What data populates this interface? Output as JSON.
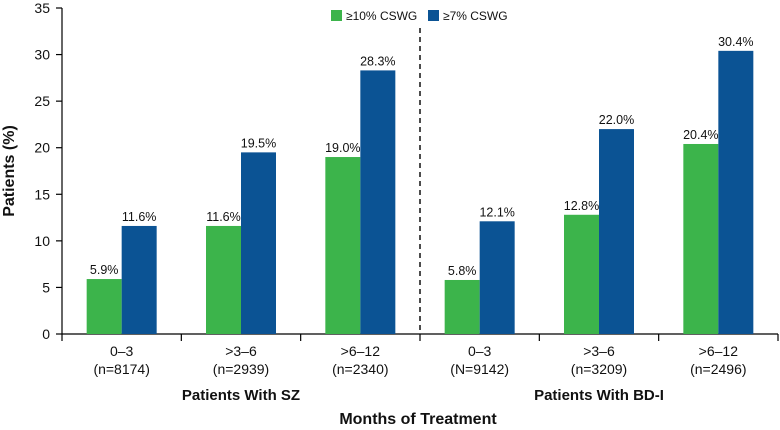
{
  "chart_data": {
    "type": "bar",
    "title": "",
    "xlabel": "Months of Treatment",
    "ylabel": "Patients (%)",
    "ylim": [
      0,
      35
    ],
    "yticks": [
      0,
      5,
      10,
      15,
      20,
      25,
      30,
      35
    ],
    "legend_position": "top-center",
    "groups": [
      {
        "label": "Patients With SZ",
        "categories": [
          {
            "label": "0–3",
            "n": "(n=8174)"
          },
          {
            "label": ">3–6",
            "n": "(n=2939)"
          },
          {
            "label": ">6–12",
            "n": "(n=2340)"
          }
        ]
      },
      {
        "label": "Patients With BD-I",
        "categories": [
          {
            "label": "0–3",
            "n": "(N=9142)"
          },
          {
            "label": ">3–6",
            "n": "(n=3209)"
          },
          {
            "label": ">6–12",
            "n": "(n=2496)"
          }
        ]
      }
    ],
    "series": [
      {
        "name": "≥10% CSWG",
        "color": "#3cb44b",
        "values": [
          5.9,
          11.6,
          19.0,
          5.8,
          12.8,
          20.4
        ],
        "labels": [
          "5.9%",
          "11.6%",
          "19.0%",
          "5.8%",
          "12.8%",
          "20.4%"
        ]
      },
      {
        "name": "≥7% CSWG",
        "color": "#0b5394",
        "values": [
          11.6,
          19.5,
          28.3,
          12.1,
          22.0,
          30.4
        ],
        "labels": [
          "11.6%",
          "19.5%",
          "28.3%",
          "12.1%",
          "22.0%",
          "30.4%"
        ]
      }
    ]
  }
}
